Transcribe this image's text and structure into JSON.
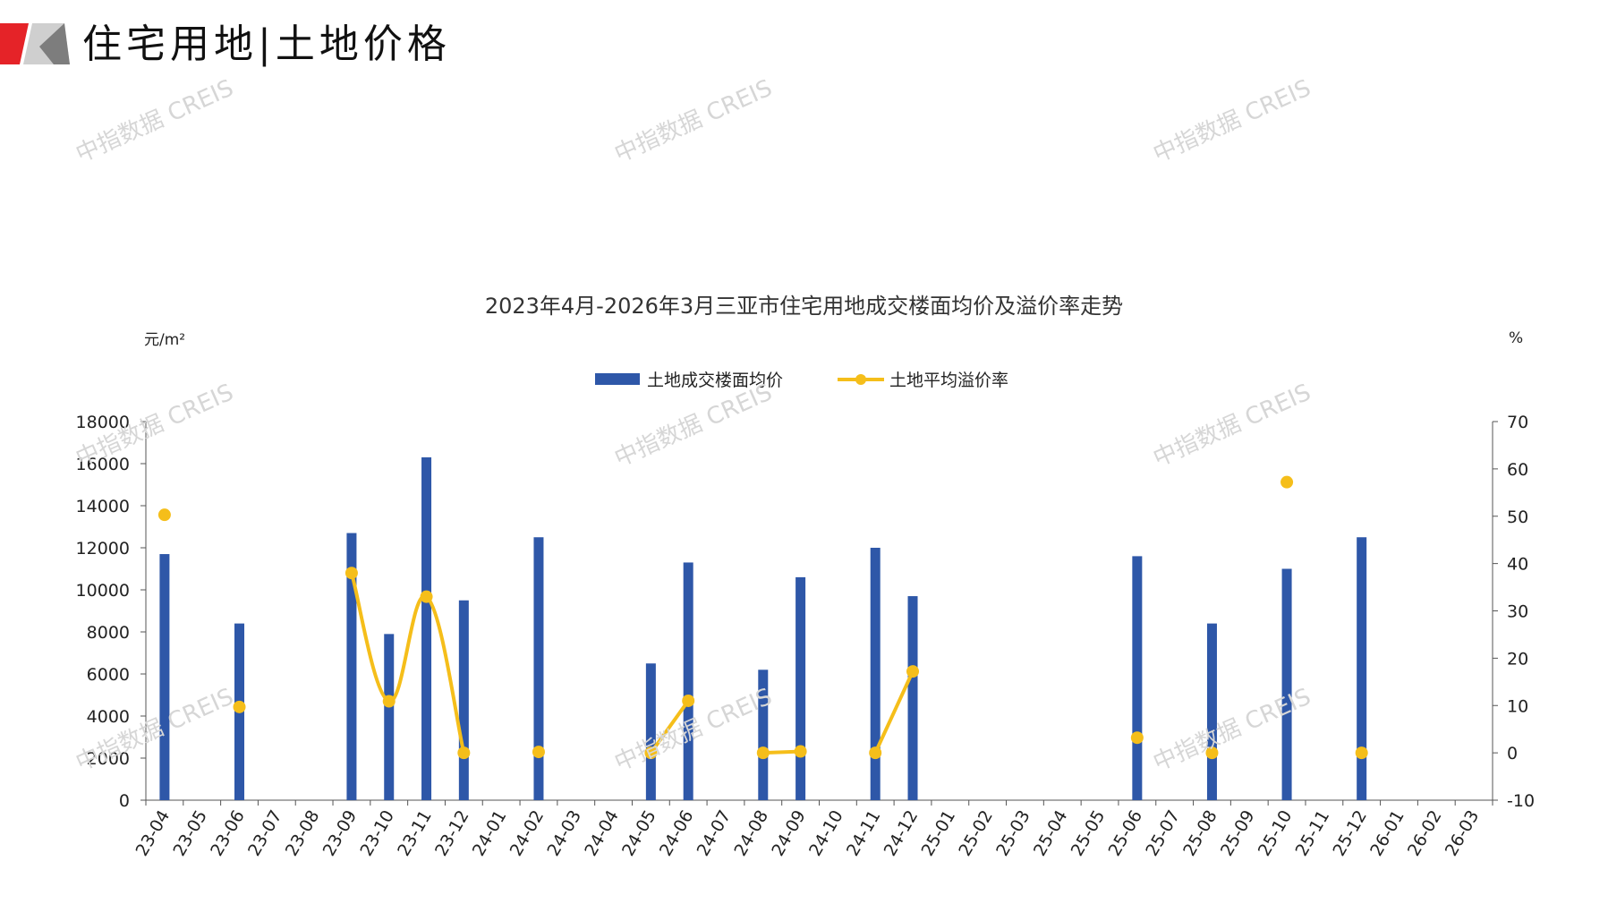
{
  "header": {
    "title": "住宅用地|土地价格"
  },
  "watermark": "中指数据 CREIS",
  "colors": {
    "bar": "#2E57A8",
    "line": "#F5BE1A",
    "logo_red": "#E52328",
    "logo_gray": "#9A9A9A"
  },
  "chart_data": {
    "type": "bar",
    "title": "2023年4月-2026年3月三亚市住宅用地成交楼面均价及溢价率走势",
    "ylabel": "元/m²",
    "y2label": "%",
    "ylim": [
      0,
      18000
    ],
    "y2lim": [
      -10,
      70
    ],
    "yticks": [
      "0",
      "2000",
      "4000",
      "6000",
      "8000",
      "10000",
      "12000",
      "14000",
      "16000",
      "18000"
    ],
    "y2ticks": [
      "-10",
      "0",
      "10",
      "20",
      "30",
      "40",
      "50",
      "60",
      "70"
    ],
    "legend_position": "top-center",
    "categories": [
      "23-04",
      "23-05",
      "23-06",
      "23-07",
      "23-08",
      "23-09",
      "23-10",
      "23-11",
      "23-12",
      "24-01",
      "24-02",
      "24-03",
      "24-04",
      "24-05",
      "24-06",
      "24-07",
      "24-08",
      "24-09",
      "24-10",
      "24-11",
      "24-12",
      "25-01",
      "25-02",
      "25-03",
      "25-04",
      "25-05",
      "25-06",
      "25-07",
      "25-08",
      "25-09",
      "25-10",
      "25-11",
      "25-12",
      "26-01",
      "26-02",
      "26-03"
    ],
    "series": [
      {
        "name": "土地成交楼面均价",
        "type": "bar",
        "axis": "left",
        "values": [
          11700,
          null,
          8400,
          null,
          null,
          12700,
          7900,
          16300,
          9500,
          null,
          12500,
          null,
          null,
          6500,
          11300,
          null,
          6200,
          10600,
          null,
          12000,
          9700,
          null,
          null,
          null,
          null,
          null,
          11600,
          null,
          8400,
          null,
          11000,
          null,
          12500,
          null,
          null,
          null
        ]
      },
      {
        "name": "土地平均溢价率",
        "type": "line",
        "axis": "right",
        "values": [
          50.3,
          null,
          9.7,
          null,
          null,
          38.0,
          10.9,
          33.0,
          0.0,
          null,
          0.2,
          null,
          null,
          0.0,
          11.0,
          null,
          0.0,
          0.3,
          null,
          0.0,
          17.2,
          null,
          null,
          null,
          null,
          null,
          3.2,
          null,
          0.0,
          null,
          57.2,
          null,
          0.0,
          null,
          null,
          null
        ],
        "connected_segments": [
          [
            5,
            8
          ],
          [
            13,
            14
          ],
          [
            16,
            17
          ],
          [
            19,
            20
          ]
        ]
      }
    ]
  }
}
